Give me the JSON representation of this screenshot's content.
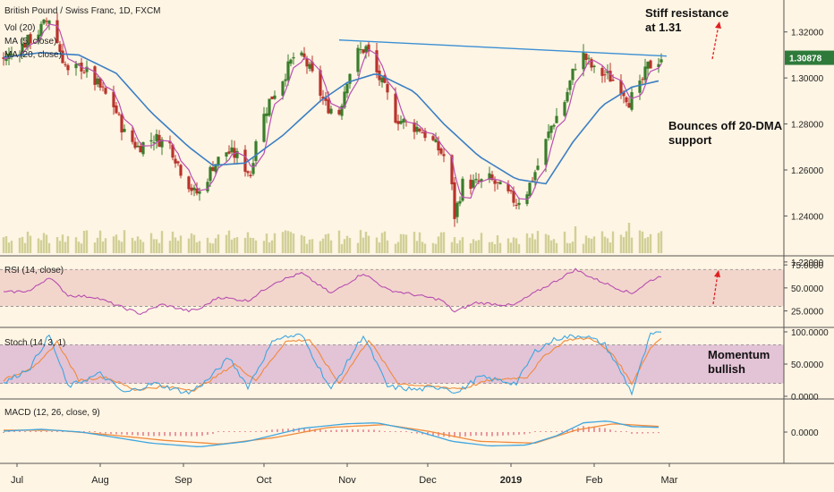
{
  "chart_data": {
    "type": "candlestick",
    "title": "British Pound / Swiss Franc, 1D, FXCM",
    "x_axis": {
      "labels": [
        "Jul",
        "Aug",
        "Sep",
        "Oct",
        "Nov",
        "Dec",
        "2019",
        "Feb",
        "Mar"
      ]
    },
    "price_panel": {
      "indicators": [
        "Vol (20)",
        "MA (5, close)",
        "MA (20, close)"
      ],
      "ylim": [
        1.225,
        1.33
      ],
      "ticks": [
        "1.32000",
        "1.30000",
        "1.28000",
        "1.26000",
        "1.24000",
        "1.22000"
      ],
      "last_price": "1.30878",
      "price_path": [
        [
          "2018-06-26",
          1.308
        ],
        [
          "2018-07-02",
          1.313
        ],
        [
          "2018-07-09",
          1.32
        ],
        [
          "2018-07-13",
          1.326
        ],
        [
          "2018-07-17",
          1.312
        ],
        [
          "2018-07-20",
          1.302
        ],
        [
          "2018-07-25",
          1.305
        ],
        [
          "2018-07-31",
          1.297
        ],
        [
          "2018-08-06",
          1.288
        ],
        [
          "2018-08-10",
          1.276
        ],
        [
          "2018-08-15",
          1.27
        ],
        [
          "2018-08-21",
          1.274
        ],
        [
          "2018-08-27",
          1.271
        ],
        [
          "2018-08-31",
          1.26
        ],
        [
          "2018-09-05",
          1.25
        ],
        [
          "2018-09-07",
          1.25
        ],
        [
          "2018-09-12",
          1.262
        ],
        [
          "2018-09-17",
          1.268
        ],
        [
          "2018-09-21",
          1.266
        ],
        [
          "2018-09-26",
          1.258
        ],
        [
          "2018-09-28",
          1.274
        ],
        [
          "2018-10-03",
          1.29
        ],
        [
          "2018-10-08",
          1.3
        ],
        [
          "2018-10-12",
          1.309
        ],
        [
          "2018-10-16",
          1.308
        ],
        [
          "2018-10-19",
          1.301
        ],
        [
          "2018-10-24",
          1.288
        ],
        [
          "2018-10-29",
          1.285
        ],
        [
          "2018-11-01",
          1.3
        ],
        [
          "2018-11-05",
          1.311
        ],
        [
          "2018-11-08",
          1.313
        ],
        [
          "2018-11-12",
          1.302
        ],
        [
          "2018-11-15",
          1.295
        ],
        [
          "2018-11-19",
          1.283
        ],
        [
          "2018-11-23",
          1.28
        ],
        [
          "2018-11-28",
          1.278
        ],
        [
          "2018-12-03",
          1.272
        ],
        [
          "2018-12-07",
          1.266
        ],
        [
          "2018-12-10",
          1.252
        ],
        [
          "2018-12-11",
          1.24
        ],
        [
          "2018-12-14",
          1.254
        ],
        [
          "2018-12-19",
          1.254
        ],
        [
          "2018-12-24",
          1.256
        ],
        [
          "2018-12-28",
          1.252
        ],
        [
          "2019-01-03",
          1.246
        ],
        [
          "2019-01-07",
          1.251
        ],
        [
          "2019-01-11",
          1.262
        ],
        [
          "2019-01-16",
          1.279
        ],
        [
          "2019-01-21",
          1.29
        ],
        [
          "2019-01-25",
          1.306
        ],
        [
          "2019-01-28",
          1.31
        ],
        [
          "2019-02-01",
          1.303
        ],
        [
          "2019-02-06",
          1.301
        ],
        [
          "2019-02-11",
          1.296
        ],
        [
          "2019-02-14",
          1.29
        ],
        [
          "2019-02-18",
          1.296
        ],
        [
          "2019-02-21",
          1.305
        ],
        [
          "2019-02-24",
          1.307
        ],
        [
          "2019-02-26",
          1.309
        ]
      ],
      "ma20_path": [
        [
          "2018-06-26",
          1.309
        ],
        [
          "2018-07-10",
          1.311
        ],
        [
          "2018-07-24",
          1.31
        ],
        [
          "2018-08-07",
          1.302
        ],
        [
          "2018-08-20",
          1.285
        ],
        [
          "2018-09-03",
          1.27
        ],
        [
          "2018-09-12",
          1.262
        ],
        [
          "2018-09-24",
          1.263
        ],
        [
          "2018-10-08",
          1.275
        ],
        [
          "2018-10-22",
          1.29
        ],
        [
          "2018-11-01",
          1.298
        ],
        [
          "2018-11-12",
          1.302
        ],
        [
          "2018-11-26",
          1.294
        ],
        [
          "2018-12-07",
          1.28
        ],
        [
          "2018-12-20",
          1.266
        ],
        [
          "2019-01-03",
          1.256
        ],
        [
          "2019-01-14",
          1.254
        ],
        [
          "2019-01-24",
          1.272
        ],
        [
          "2019-02-04",
          1.288
        ],
        [
          "2019-02-15",
          1.296
        ],
        [
          "2019-02-26",
          1.299
        ]
      ],
      "resistance_line": [
        [
          "2018-10-29",
          1.3165
        ],
        [
          "2019-02-28",
          1.3095
        ]
      ]
    },
    "rsi_panel": {
      "label": "RSI (14, close)",
      "ylim": [
        10,
        80
      ],
      "ticks": [
        "75.0000",
        "50.0000",
        "25.0000"
      ],
      "band": [
        30,
        70
      ],
      "path": [
        [
          "2018-06-26",
          45
        ],
        [
          "2018-07-06",
          47
        ],
        [
          "2018-07-13",
          62
        ],
        [
          "2018-07-20",
          42
        ],
        [
          "2018-07-30",
          40
        ],
        [
          "2018-08-10",
          28
        ],
        [
          "2018-08-16",
          22
        ],
        [
          "2018-08-24",
          32
        ],
        [
          "2018-09-03",
          25
        ],
        [
          "2018-09-07",
          27
        ],
        [
          "2018-09-14",
          40
        ],
        [
          "2018-09-25",
          36
        ],
        [
          "2018-10-05",
          56
        ],
        [
          "2018-10-15",
          66
        ],
        [
          "2018-10-26",
          44
        ],
        [
          "2018-11-07",
          66
        ],
        [
          "2018-11-16",
          48
        ],
        [
          "2018-11-27",
          42
        ],
        [
          "2018-12-06",
          37
        ],
        [
          "2018-12-11",
          24
        ],
        [
          "2018-12-19",
          34
        ],
        [
          "2019-01-02",
          31
        ],
        [
          "2019-01-10",
          45
        ],
        [
          "2019-01-18",
          58
        ],
        [
          "2019-01-25",
          70
        ],
        [
          "2019-02-01",
          60
        ],
        [
          "2019-02-11",
          48
        ],
        [
          "2019-02-15",
          44
        ],
        [
          "2019-02-22",
          58
        ],
        [
          "2019-02-26",
          63
        ]
      ]
    },
    "stoch_panel": {
      "label": "Stoch (14, 3, 1)",
      "ylim": [
        0,
        100
      ],
      "ticks": [
        "100.0000",
        "50.0000",
        "0.0000"
      ],
      "band": [
        20,
        80
      ],
      "k_path": [
        [
          "2018-06-26",
          20
        ],
        [
          "2018-07-06",
          45
        ],
        [
          "2018-07-13",
          95
        ],
        [
          "2018-07-20",
          15
        ],
        [
          "2018-08-01",
          35
        ],
        [
          "2018-08-10",
          5
        ],
        [
          "2018-08-21",
          20
        ],
        [
          "2018-09-03",
          5
        ],
        [
          "2018-09-10",
          25
        ],
        [
          "2018-09-18",
          60
        ],
        [
          "2018-09-25",
          15
        ],
        [
          "2018-10-05",
          90
        ],
        [
          "2018-10-15",
          95
        ],
        [
          "2018-10-26",
          10
        ],
        [
          "2018-11-07",
          95
        ],
        [
          "2018-11-16",
          15
        ],
        [
          "2018-11-27",
          10
        ],
        [
          "2018-12-07",
          15
        ],
        [
          "2018-12-12",
          5
        ],
        [
          "2018-12-20",
          30
        ],
        [
          "2019-01-03",
          20
        ],
        [
          "2019-01-10",
          70
        ],
        [
          "2019-01-18",
          90
        ],
        [
          "2019-01-28",
          95
        ],
        [
          "2019-02-05",
          80
        ],
        [
          "2019-02-12",
          30
        ],
        [
          "2019-02-15",
          5
        ],
        [
          "2019-02-22",
          95
        ],
        [
          "2019-02-26",
          98
        ]
      ],
      "d_path": [
        [
          "2018-06-26",
          25
        ],
        [
          "2018-07-09",
          50
        ],
        [
          "2018-07-16",
          85
        ],
        [
          "2018-07-24",
          25
        ],
        [
          "2018-08-03",
          30
        ],
        [
          "2018-08-14",
          10
        ],
        [
          "2018-08-24",
          15
        ],
        [
          "2018-09-05",
          10
        ],
        [
          "2018-09-13",
          30
        ],
        [
          "2018-09-20",
          50
        ],
        [
          "2018-09-28",
          25
        ],
        [
          "2018-10-09",
          85
        ],
        [
          "2018-10-18",
          88
        ],
        [
          "2018-10-29",
          20
        ],
        [
          "2018-11-09",
          88
        ],
        [
          "2018-11-20",
          20
        ],
        [
          "2018-12-03",
          15
        ],
        [
          "2018-12-14",
          12
        ],
        [
          "2018-12-24",
          25
        ],
        [
          "2019-01-07",
          30
        ],
        [
          "2019-01-14",
          65
        ],
        [
          "2019-01-22",
          88
        ],
        [
          "2019-01-31",
          90
        ],
        [
          "2019-02-08",
          65
        ],
        [
          "2019-02-15",
          20
        ],
        [
          "2019-02-22",
          75
        ],
        [
          "2019-02-26",
          92
        ]
      ]
    },
    "macd_panel": {
      "label": "MACD (12, 26, close, 9)",
      "ylim": [
        -0.03,
        0.03
      ],
      "ticks": [
        "0.0000"
      ],
      "macd_path": [
        [
          "2018-06-26",
          0.001
        ],
        [
          "2018-07-10",
          0.003
        ],
        [
          "2018-07-25",
          0.0
        ],
        [
          "2018-08-20",
          -0.012
        ],
        [
          "2018-09-07",
          -0.016
        ],
        [
          "2018-09-25",
          -0.01
        ],
        [
          "2018-10-15",
          0.004
        ],
        [
          "2018-11-01",
          0.009
        ],
        [
          "2018-11-12",
          0.01
        ],
        [
          "2018-11-26",
          0.002
        ],
        [
          "2018-12-10",
          -0.01
        ],
        [
          "2018-12-24",
          -0.015
        ],
        [
          "2019-01-07",
          -0.014
        ],
        [
          "2019-01-18",
          -0.004
        ],
        [
          "2019-01-28",
          0.01
        ],
        [
          "2019-02-06",
          0.012
        ],
        [
          "2019-02-15",
          0.006
        ],
        [
          "2019-02-26",
          0.005
        ]
      ],
      "signal_path": [
        [
          "2018-06-26",
          0.002
        ],
        [
          "2018-07-15",
          0.002
        ],
        [
          "2018-08-01",
          -0.002
        ],
        [
          "2018-08-25",
          -0.009
        ],
        [
          "2018-09-15",
          -0.013
        ],
        [
          "2018-10-05",
          -0.006
        ],
        [
          "2018-10-25",
          0.005
        ],
        [
          "2018-11-15",
          0.008
        ],
        [
          "2018-12-01",
          0.001
        ],
        [
          "2018-12-20",
          -0.01
        ],
        [
          "2019-01-10",
          -0.012
        ],
        [
          "2019-01-25",
          0.002
        ],
        [
          "2019-02-08",
          0.009
        ],
        [
          "2019-02-26",
          0.006
        ]
      ]
    }
  },
  "annotations": {
    "resistance_line1": "Stiff resistance",
    "resistance_line2": "at 1.31",
    "support_line1": "Bounces off 20-DMA",
    "support_line2": "support",
    "stoch_line1": "Momentum",
    "stoch_line2": "bullish"
  },
  "colors": {
    "background": "#fff5e4",
    "candle_up": "#3a7d2c",
    "candle_down": "#b8332b",
    "volume": "#c9c98a",
    "ma5": "#b84fb0",
    "ma20": "#3b7fc4",
    "resistance": "#3b8fd4",
    "rsi_line": "#b84fb0",
    "rsi_band": "#f2d6cc",
    "stoch_band": "#e3c3d6",
    "stoch_k": "#3fa6e0",
    "stoch_d": "#f08a3c",
    "macd_line": "#3fa6e0",
    "signal_line": "#f08a3c",
    "hist": "#d23c5c",
    "arrow": "#e02020",
    "last_price_bg": "#2e7a3a"
  }
}
